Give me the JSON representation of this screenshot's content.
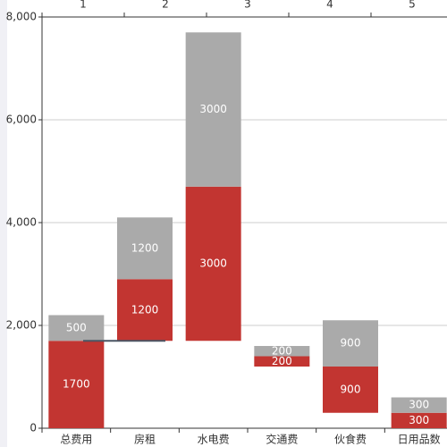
{
  "chart_data": {
    "type": "waterfall",
    "categories": [
      "总费用",
      "房租",
      "水电费",
      "交通费",
      "伙食费",
      "日用品数"
    ],
    "offsets": [
      0,
      1700,
      1700,
      1200,
      300,
      0
    ],
    "series": [
      {
        "color": "#c23531",
        "values": [
          1700,
          1200,
          3000,
          200,
          900,
          300
        ]
      },
      {
        "color": "#aaaaaa",
        "values": [
          500,
          1200,
          3000,
          200,
          900,
          300
        ]
      }
    ],
    "top_categories": [
      "1",
      "2",
      "3",
      "4",
      "5"
    ],
    "line": {
      "color": "#4a5563",
      "values": [
        1700,
        1700,
        null,
        null,
        null
      ]
    },
    "ylim": [
      0,
      8000
    ],
    "yticks": [
      0,
      {
        "value": 2000,
        "label": "2,000"
      },
      {
        "value": 4000,
        "label": "4,000"
      },
      {
        "value": 6000,
        "label": "6,000"
      },
      {
        "value": 8000,
        "label": "8,000"
      }
    ],
    "grid": true
  }
}
